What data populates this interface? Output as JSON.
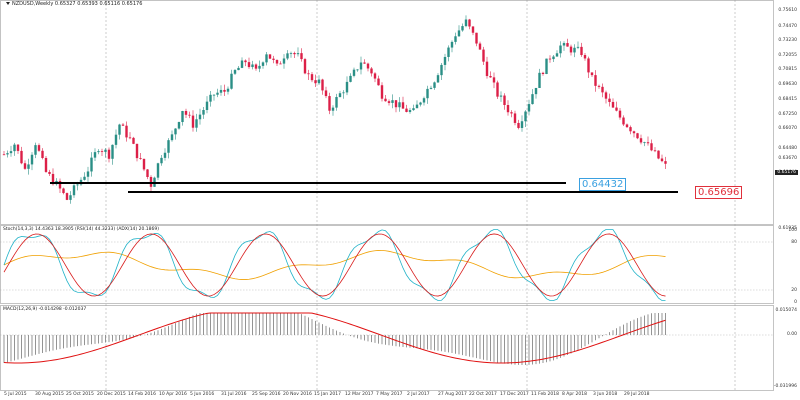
{
  "window": {
    "title": "NZDUSD,Weekly  0.65327 0.65393 0.65116 0.65176"
  },
  "indicators": {
    "stoch_label": "Stoch(14,3,3) 14.4363 18.3905 (RSI(14) 44.3233) (ADX(14) 20.1869)",
    "macd_label": "MACD(12,26,9) -0.014298 -0.012037"
  },
  "levels": {
    "upper": "0.65696",
    "lower": "0.64432"
  },
  "current_price": "0.65176",
  "price_axis": [
    "0.75610",
    "0.74470",
    "0.73230",
    "0.72055",
    "0.70815",
    "0.69630",
    "0.68415",
    "0.67250",
    "0.66070",
    "0.64480",
    "0.63670",
    "0.62480",
    "0.61935"
  ],
  "stoch_axis": [
    "100",
    "80",
    "20",
    "0"
  ],
  "macd_axis": [
    "0.015074",
    "0.00",
    "-0.031996"
  ],
  "x_labels": [
    "5 Jul 2015",
    "30 Aug 2015",
    "25 Oct 2015",
    "20 Dec 2015",
    "14 Feb 2016",
    "10 Apr 2016",
    "5 Jun 2016",
    "31 Jul 2016",
    "25 Sep 2016",
    "20 Nov 2016",
    "15 Jan 2017",
    "12 Mar 2017",
    "7 May 2017",
    "2 Jul 2017",
    "27 Aug 2017",
    "22 Oct 2017",
    "17 Dec 2017",
    "11 Feb 2018",
    "8 Apr 2018",
    "3 Jun 2018",
    "29 Jul 2018"
  ],
  "colors": {
    "bull": "#2a8f86",
    "bear": "#dc1f47",
    "stoch_main": "#20b2c8",
    "stoch_signal": "#d81b1b",
    "rsi_line": "#f0a000",
    "macd_hist": "#888888",
    "macd_signal": "#e01010",
    "level_line": "#000000"
  },
  "chart_data": {
    "type": "candlestick",
    "symbol": "NZDUSD",
    "timeframe": "Weekly",
    "ohlc": [
      0.65327,
      0.65393,
      0.65116,
      0.65176
    ],
    "close_path": [
      [
        0,
        0.66
      ],
      [
        3,
        0.667
      ],
      [
        6,
        0.65
      ],
      [
        9,
        0.668
      ],
      [
        12,
        0.648
      ],
      [
        15,
        0.64
      ],
      [
        18,
        0.63
      ],
      [
        21,
        0.64
      ],
      [
        24,
        0.65
      ],
      [
        27,
        0.665
      ],
      [
        30,
        0.66
      ],
      [
        33,
        0.68
      ],
      [
        36,
        0.67
      ],
      [
        39,
        0.655
      ],
      [
        42,
        0.64
      ],
      [
        45,
        0.66
      ],
      [
        48,
        0.672
      ],
      [
        51,
        0.69
      ],
      [
        54,
        0.68
      ],
      [
        57,
        0.69
      ],
      [
        60,
        0.7
      ],
      [
        63,
        0.702
      ],
      [
        66,
        0.715
      ],
      [
        69,
        0.722
      ],
      [
        72,
        0.715
      ],
      [
        75,
        0.728
      ],
      [
        78,
        0.718
      ],
      [
        81,
        0.73
      ],
      [
        84,
        0.725
      ],
      [
        87,
        0.712
      ],
      [
        90,
        0.708
      ],
      [
        93,
        0.69
      ],
      [
        96,
        0.7
      ],
      [
        99,
        0.71
      ],
      [
        102,
        0.722
      ],
      [
        105,
        0.715
      ],
      [
        108,
        0.7
      ],
      [
        111,
        0.695
      ],
      [
        114,
        0.69
      ],
      [
        117,
        0.688
      ],
      [
        120,
        0.7
      ],
      [
        123,
        0.71
      ],
      [
        126,
        0.725
      ],
      [
        129,
        0.74
      ],
      [
        132,
        0.748
      ],
      [
        135,
        0.735
      ],
      [
        138,
        0.715
      ],
      [
        141,
        0.7
      ],
      [
        144,
        0.69
      ],
      [
        147,
        0.68
      ],
      [
        150,
        0.695
      ],
      [
        153,
        0.712
      ],
      [
        156,
        0.725
      ],
      [
        159,
        0.732
      ],
      [
        162,
        0.73
      ],
      [
        165,
        0.728
      ],
      [
        168,
        0.71
      ],
      [
        171,
        0.7
      ],
      [
        174,
        0.69
      ],
      [
        177,
        0.682
      ],
      [
        180,
        0.675
      ],
      [
        183,
        0.668
      ],
      [
        186,
        0.66
      ],
      [
        189,
        0.652
      ]
    ],
    "levels": [
      0.65696,
      0.64432
    ]
  }
}
